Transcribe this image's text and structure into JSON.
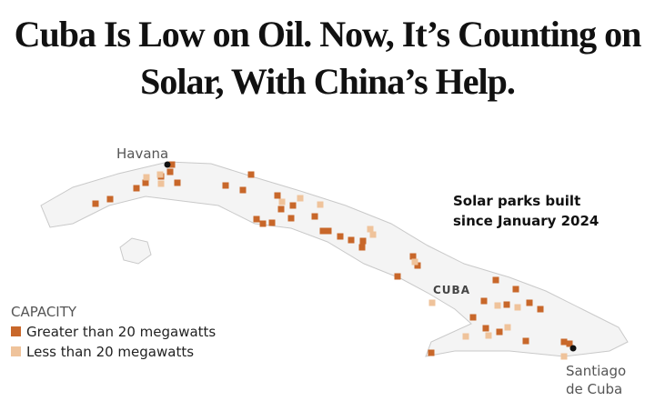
{
  "title": "Cuba Is Low on Oil. Now, It’s Counting on Solar, With China’s Help.",
  "places": {
    "havana": "Havana",
    "country": "CUBA",
    "santiago": "Santiago de Cuba"
  },
  "annotation": "Solar parks built since January 2024",
  "legend": {
    "title": "CAPACITY",
    "items": [
      {
        "label": "Greater than 20 megawatts",
        "color": "#c8672a"
      },
      {
        "label": "Less than 20 megawatts",
        "color": "#efc39b"
      }
    ]
  }
}
